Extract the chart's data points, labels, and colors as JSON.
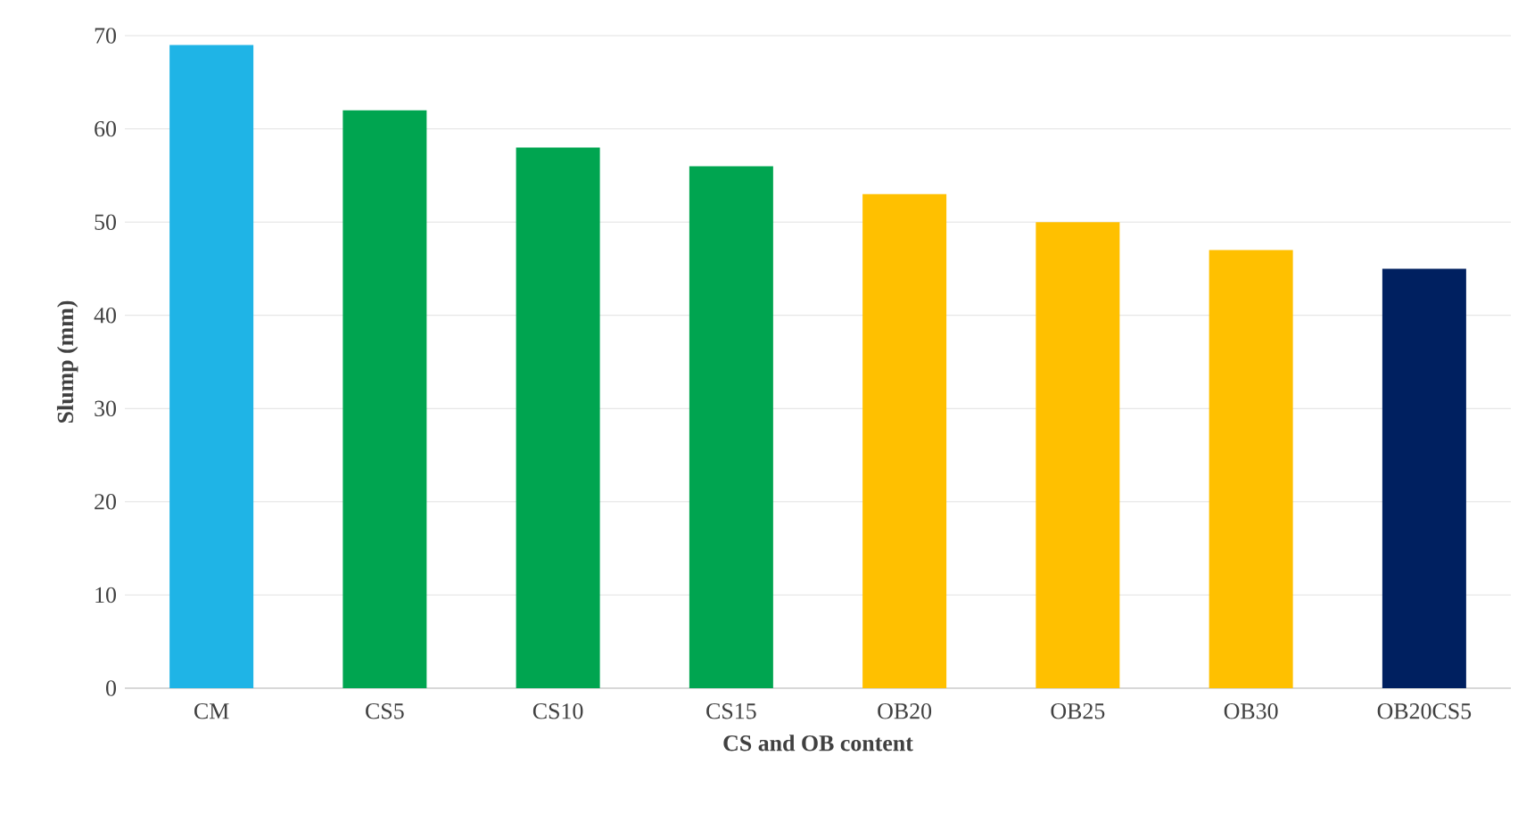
{
  "chart_data": {
    "type": "bar",
    "xlabel": "CS and OB content",
    "ylabel": "Slump (mm)",
    "categories": [
      "CM",
      "CS5",
      "CS10",
      "CS15",
      "OB20",
      "OB25",
      "OB30",
      "OB20CS5"
    ],
    "values": [
      69,
      62,
      58,
      56,
      53,
      50,
      47,
      45
    ],
    "colors": [
      "#1fb4e6",
      "#00a550",
      "#00a550",
      "#00a550",
      "#ffc000",
      "#ffc000",
      "#ffc000",
      "#002060"
    ],
    "ylim": [
      0,
      70
    ],
    "yticks": [
      0,
      10,
      20,
      30,
      40,
      50,
      60,
      70
    ],
    "grid": "y"
  }
}
